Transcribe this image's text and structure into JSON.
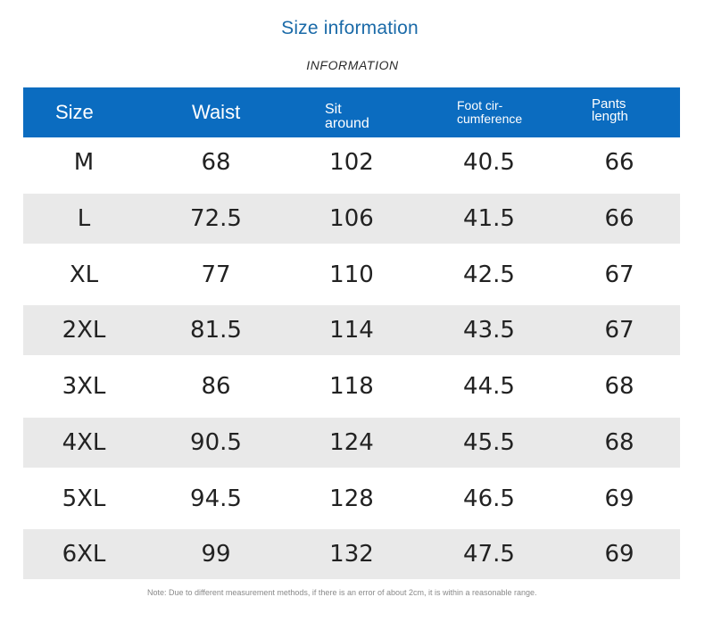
{
  "title": "Size information",
  "subtitle": "INFORMATION",
  "table": {
    "headers": {
      "size": "Size",
      "waist": "Waist",
      "sit_around_line1": "Sit",
      "sit_around_line2": "around",
      "foot_line1": "Foot cir-",
      "foot_line2": "cumference",
      "pants_line1": "Pants",
      "pants_line2": "length"
    },
    "rows": [
      {
        "size": "M",
        "waist": "68",
        "sit_around": "102",
        "foot": "40.5",
        "pants": "66"
      },
      {
        "size": "L",
        "waist": "72.5",
        "sit_around": "106",
        "foot": "41.5",
        "pants": "66"
      },
      {
        "size": "XL",
        "waist": "77",
        "sit_around": "110",
        "foot": "42.5",
        "pants": "67"
      },
      {
        "size": "2XL",
        "waist": "81.5",
        "sit_around": "114",
        "foot": "43.5",
        "pants": "67"
      },
      {
        "size": "3XL",
        "waist": "86",
        "sit_around": "118",
        "foot": "44.5",
        "pants": "68"
      },
      {
        "size": "4XL",
        "waist": "90.5",
        "sit_around": "124",
        "foot": "45.5",
        "pants": "68"
      },
      {
        "size": "5XL",
        "waist": "94.5",
        "sit_around": "128",
        "foot": "46.5",
        "pants": "69"
      },
      {
        "size": "6XL",
        "waist": "99",
        "sit_around": "132",
        "foot": "47.5",
        "pants": "69"
      }
    ]
  },
  "note": "Note: Due to different measurement methods, if there is an error of about 2cm, it is within a reasonable range.",
  "colors": {
    "header_bg": "#0b6cc0",
    "title": "#1a6aa8",
    "row_shade": "#e9e9e9"
  }
}
